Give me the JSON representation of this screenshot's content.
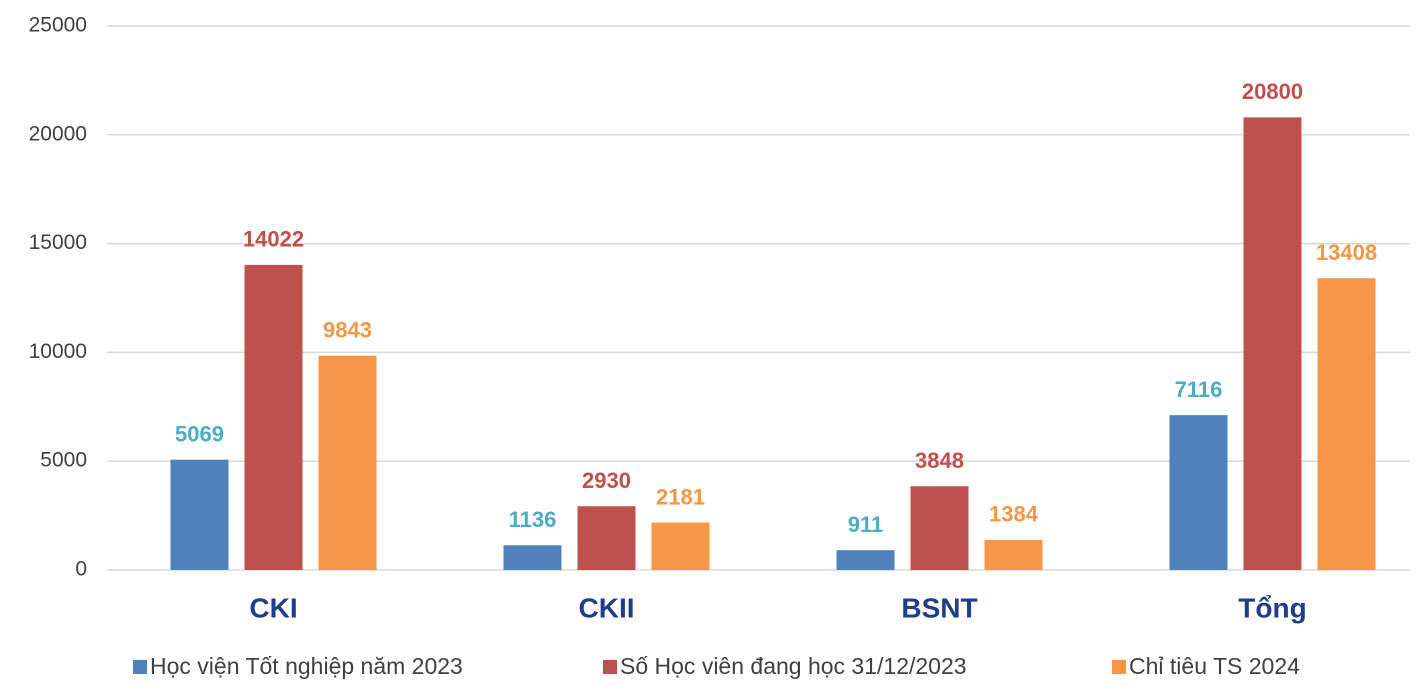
{
  "chart_data": {
    "type": "bar",
    "categories": [
      "CKI",
      "CKII",
      "BSNT",
      "Tổng"
    ],
    "series": [
      {
        "name": "Học viện Tốt nghiệp năm 2023",
        "color": "#4f81bd",
        "label_color": "#4bacc6",
        "values": [
          5069,
          1136,
          911,
          7116
        ]
      },
      {
        "name": "Số Học viên đang học 31/12/2023",
        "color": "#c0504d",
        "label_color": "#c0504d",
        "values": [
          14022,
          2930,
          3848,
          20800
        ]
      },
      {
        "name": "Chỉ tiêu TS 2024",
        "color": "#f79646",
        "label_color": "#f79646",
        "values": [
          9843,
          2181,
          1384,
          13408
        ]
      }
    ],
    "ylim": [
      0,
      25000
    ],
    "yticks": [
      0,
      5000,
      10000,
      15000,
      20000,
      25000
    ],
    "grid": true,
    "legend": "bottom"
  }
}
